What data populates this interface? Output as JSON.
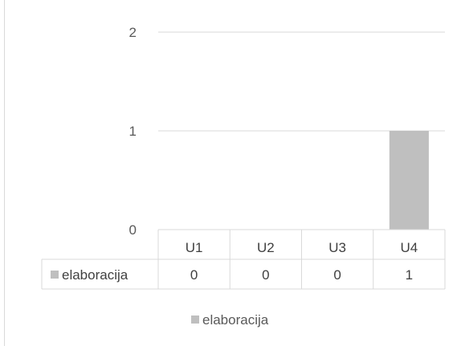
{
  "chart_data": {
    "type": "bar",
    "title": "",
    "xlabel": "",
    "ylabel": "",
    "categories": [
      "U1",
      "U2",
      "U3",
      "U4"
    ],
    "series": [
      {
        "name": "elaboracija",
        "values": [
          0,
          0,
          0,
          1
        ],
        "color": "#bfbfbf"
      }
    ],
    "ylim": [
      0,
      2
    ],
    "yticks": [
      "0",
      "1",
      "2"
    ],
    "grid": true,
    "data_table": true,
    "table_values": [
      [
        "0",
        "0",
        "0",
        "1"
      ]
    ],
    "legend": {
      "position": "bottom",
      "entries": [
        "elaboracija"
      ]
    }
  }
}
